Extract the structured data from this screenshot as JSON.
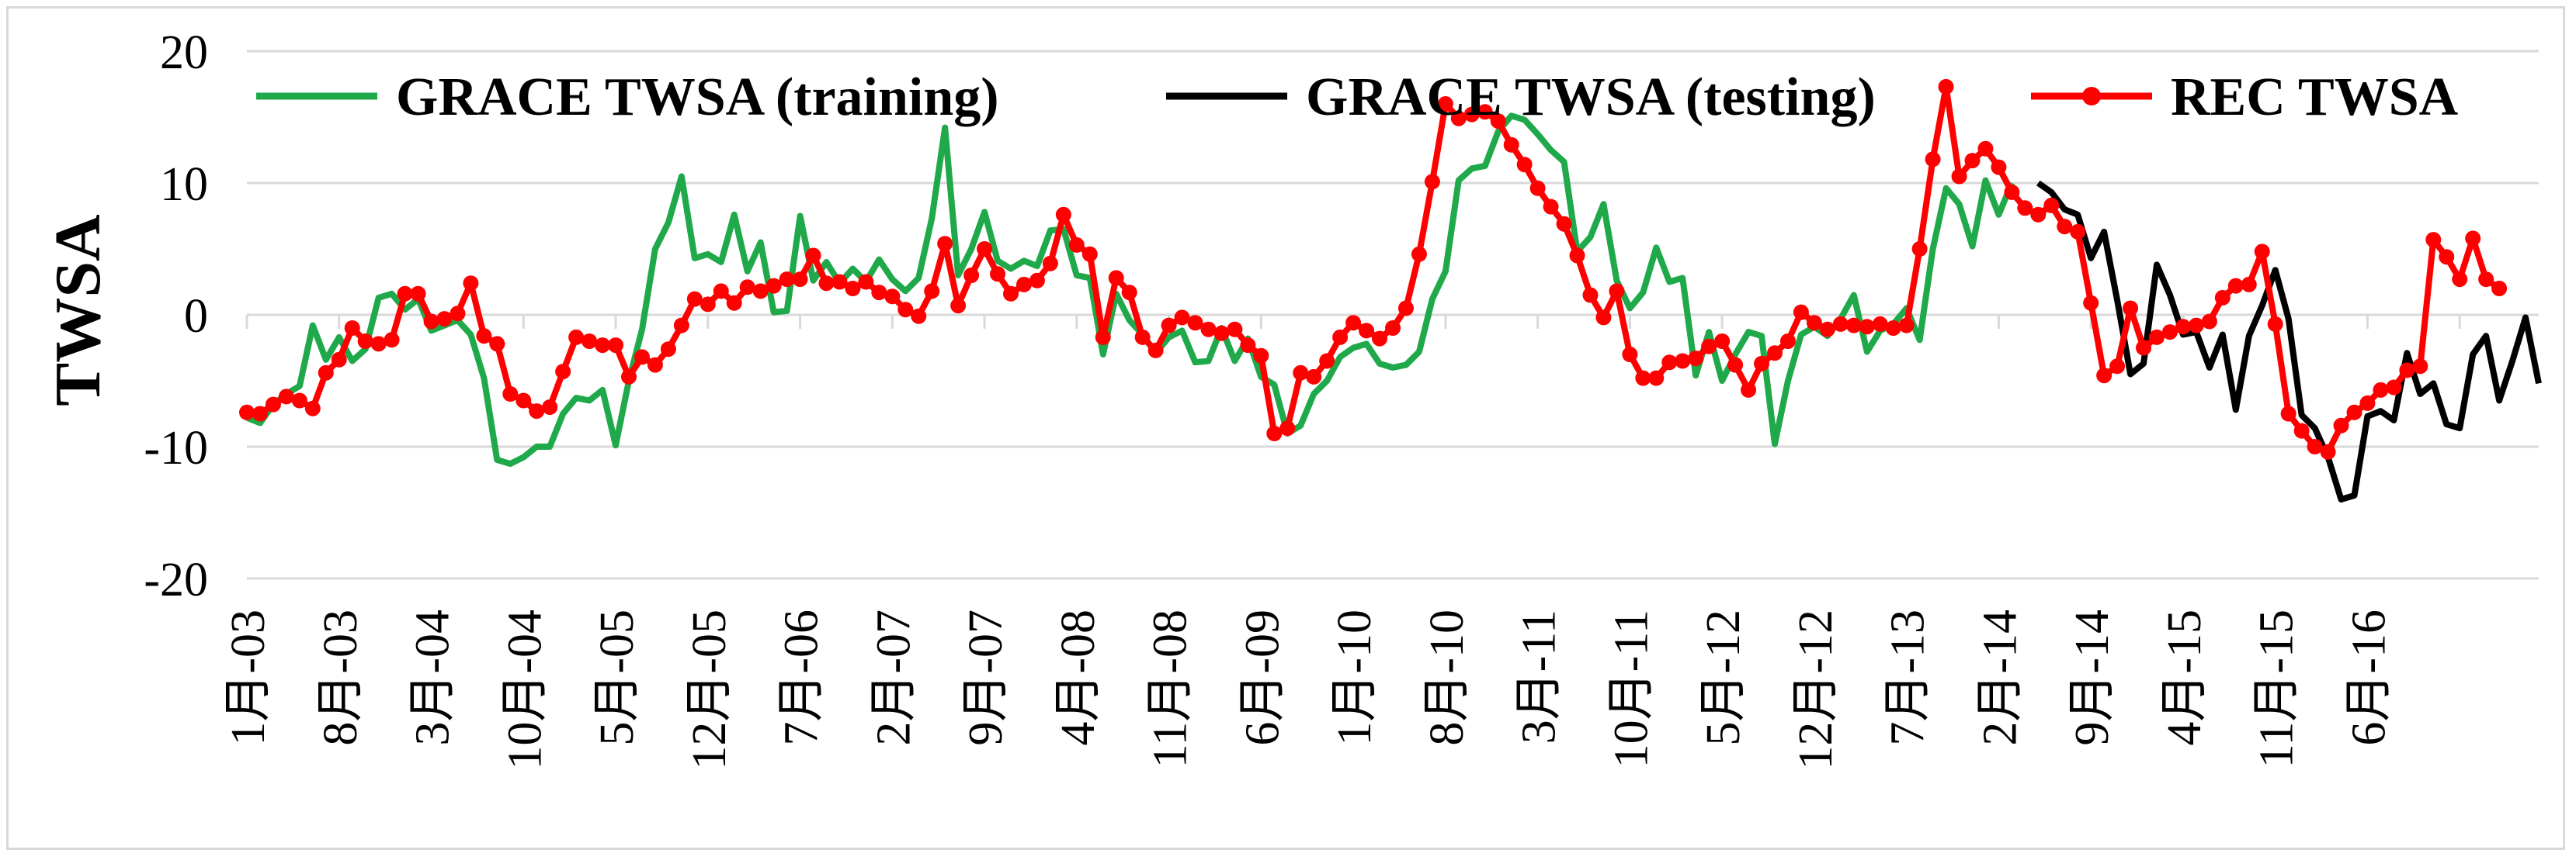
{
  "chart_data": {
    "type": "line",
    "ylabel": "TWSA",
    "xlabel": "",
    "ylim": [
      -20,
      20
    ],
    "yticks": [
      20,
      10,
      0,
      -10,
      -20
    ],
    "x_tick_labels": [
      "1月-03",
      "8月-03",
      "3月-04",
      "10月-04",
      "5月-05",
      "12月-05",
      "7月-06",
      "2月-07",
      "9月-07",
      "4月-08",
      "11月-08",
      "6月-09",
      "1月-10",
      "8月-10",
      "3月-11",
      "10月-11",
      "5月-12",
      "12月-12",
      "7月-13",
      "2月-14",
      "9月-14",
      "4月-15",
      "11月-15",
      "6月-16"
    ],
    "grid": "horizontal",
    "legend": "top",
    "series": [
      {
        "name": "GRACE TWSA (training)",
        "color": "#1fa94a",
        "start_index": 0,
        "values": [
          -7.8,
          -8.2,
          -6.8,
          -6.0,
          -5.4,
          -0.8,
          -3.4,
          -1.7,
          -3.5,
          -2.6,
          1.3,
          1.6,
          0.4,
          1.2,
          -1.2,
          -0.8,
          -0.4,
          -1.5,
          -4.8,
          -11.0,
          -11.3,
          -10.8,
          -10.0,
          -10.0,
          -7.5,
          -6.3,
          -6.5,
          -5.7,
          -9.9,
          -5.0,
          -1.1,
          5.0,
          7.0,
          10.5,
          4.3,
          4.6,
          4.0,
          7.6,
          3.3,
          5.5,
          0.2,
          0.3,
          7.5,
          2.6,
          4.0,
          2.4,
          3.5,
          2.5,
          4.2,
          2.7,
          1.8,
          2.8,
          7.3,
          14.2,
          3.0,
          5.0,
          7.8,
          4.1,
          3.5,
          4.1,
          3.7,
          6.4,
          6.5,
          3.0,
          2.8,
          -3.0,
          1.6,
          -0.4,
          -1.5,
          -2.9,
          -1.7,
          -1.2,
          -3.6,
          -3.5,
          -1.0,
          -3.5,
          -1.8,
          -4.7,
          -5.3,
          -9.0,
          -8.4,
          -6.0,
          -5.0,
          -3.2,
          -2.5,
          -2.2,
          -3.7,
          -4.0,
          -3.8,
          -2.8,
          1.2,
          3.3,
          10.2,
          11.1,
          11.3,
          13.9,
          15.1,
          14.8,
          13.7,
          12.5,
          11.6,
          4.8,
          5.9,
          8.4,
          2.6,
          0.5,
          1.7,
          5.1,
          2.5,
          2.8,
          -4.6,
          -1.3,
          -5.0,
          -3.0,
          -1.3,
          -1.6,
          -9.8,
          -5.0,
          -1.5,
          -0.9,
          -1.6,
          -0.3,
          1.5,
          -2.8,
          -1.2,
          -0.7,
          0.5,
          -1.9,
          5.0,
          9.6,
          8.4,
          5.2,
          10.2,
          7.6,
          10.0
        ]
      },
      {
        "name": "GRACE TWSA (testing)",
        "color": "#000000",
        "start_index": 136,
        "values": [
          10.0,
          9.3,
          8.0,
          7.6,
          4.3,
          6.3,
          1.1,
          -4.5,
          -3.7,
          3.8,
          1.5,
          -1.5,
          -1.3,
          -4.0,
          -1.5,
          -7.2,
          -1.6,
          0.7,
          3.4,
          -0.3,
          -7.6,
          -8.6,
          -10.8,
          -14.0,
          -13.7,
          -7.7,
          -7.3,
          -8.0,
          -2.9,
          -6.0,
          -5.2,
          -8.3,
          -8.6,
          -3.0,
          -1.6,
          -6.5,
          -3.5,
          -0.2,
          -5.2
        ]
      },
      {
        "name": "REC TWSA",
        "color": "#ff0000",
        "start_index": 0,
        "values": [
          -7.4,
          -7.5,
          -6.8,
          -6.2,
          -6.5,
          -7.1,
          -4.4,
          -3.4,
          -1.0,
          -2.0,
          -2.2,
          -1.9,
          1.6,
          1.6,
          -0.5,
          -0.3,
          0.1,
          2.4,
          -1.6,
          -2.2,
          -6.0,
          -6.5,
          -7.3,
          -7.0,
          -4.3,
          -1.7,
          -2.0,
          -2.3,
          -2.3,
          -4.7,
          -3.2,
          -3.8,
          -2.6,
          -0.8,
          1.2,
          0.8,
          1.8,
          0.9,
          2.1,
          1.8,
          2.2,
          2.7,
          2.7,
          4.5,
          2.4,
          2.5,
          2.0,
          2.5,
          1.7,
          1.4,
          0.4,
          -0.1,
          1.8,
          5.4,
          0.7,
          3.0,
          5.0,
          3.1,
          1.6,
          2.3,
          2.6,
          3.9,
          7.6,
          5.3,
          4.6,
          -1.7,
          2.8,
          1.7,
          -1.7,
          -2.7,
          -0.8,
          -0.2,
          -0.6,
          -1.1,
          -1.4,
          -1.1,
          -2.3,
          -3.1,
          -9.0,
          -8.6,
          -4.4,
          -4.7,
          -3.5,
          -1.7,
          -0.6,
          -1.2,
          -1.8,
          -1.0,
          0.5,
          4.6,
          10.1,
          16.0,
          14.9,
          15.2,
          15.4,
          14.7,
          12.9,
          11.4,
          9.6,
          8.2,
          6.9,
          4.5,
          1.5,
          -0.2,
          1.8,
          -3.0,
          -4.8,
          -4.8,
          -3.6,
          -3.5,
          -3.3,
          -2.4,
          -2.0,
          -3.8,
          -5.7,
          -3.7,
          -2.9,
          -2.0,
          0.2,
          -0.6,
          -1.1,
          -0.7,
          -0.8,
          -0.9,
          -0.7,
          -1.0,
          -0.8,
          5.0,
          11.8,
          17.3,
          10.5,
          11.7,
          12.6,
          11.2,
          9.3,
          8.1,
          7.6,
          8.3,
          6.7,
          6.3,
          0.9,
          -4.6,
          -3.9,
          0.5,
          -2.5,
          -1.7,
          -1.3,
          -0.9,
          -0.8,
          -0.5,
          1.3,
          2.2,
          2.3,
          4.8,
          -0.7,
          -7.5,
          -8.8,
          -10.0,
          -10.4,
          -8.4,
          -7.4,
          -6.7,
          -5.7,
          -5.5,
          -4.2,
          -3.9,
          5.7,
          4.4,
          2.7,
          5.8,
          2.7,
          2.0
        ]
      }
    ]
  }
}
